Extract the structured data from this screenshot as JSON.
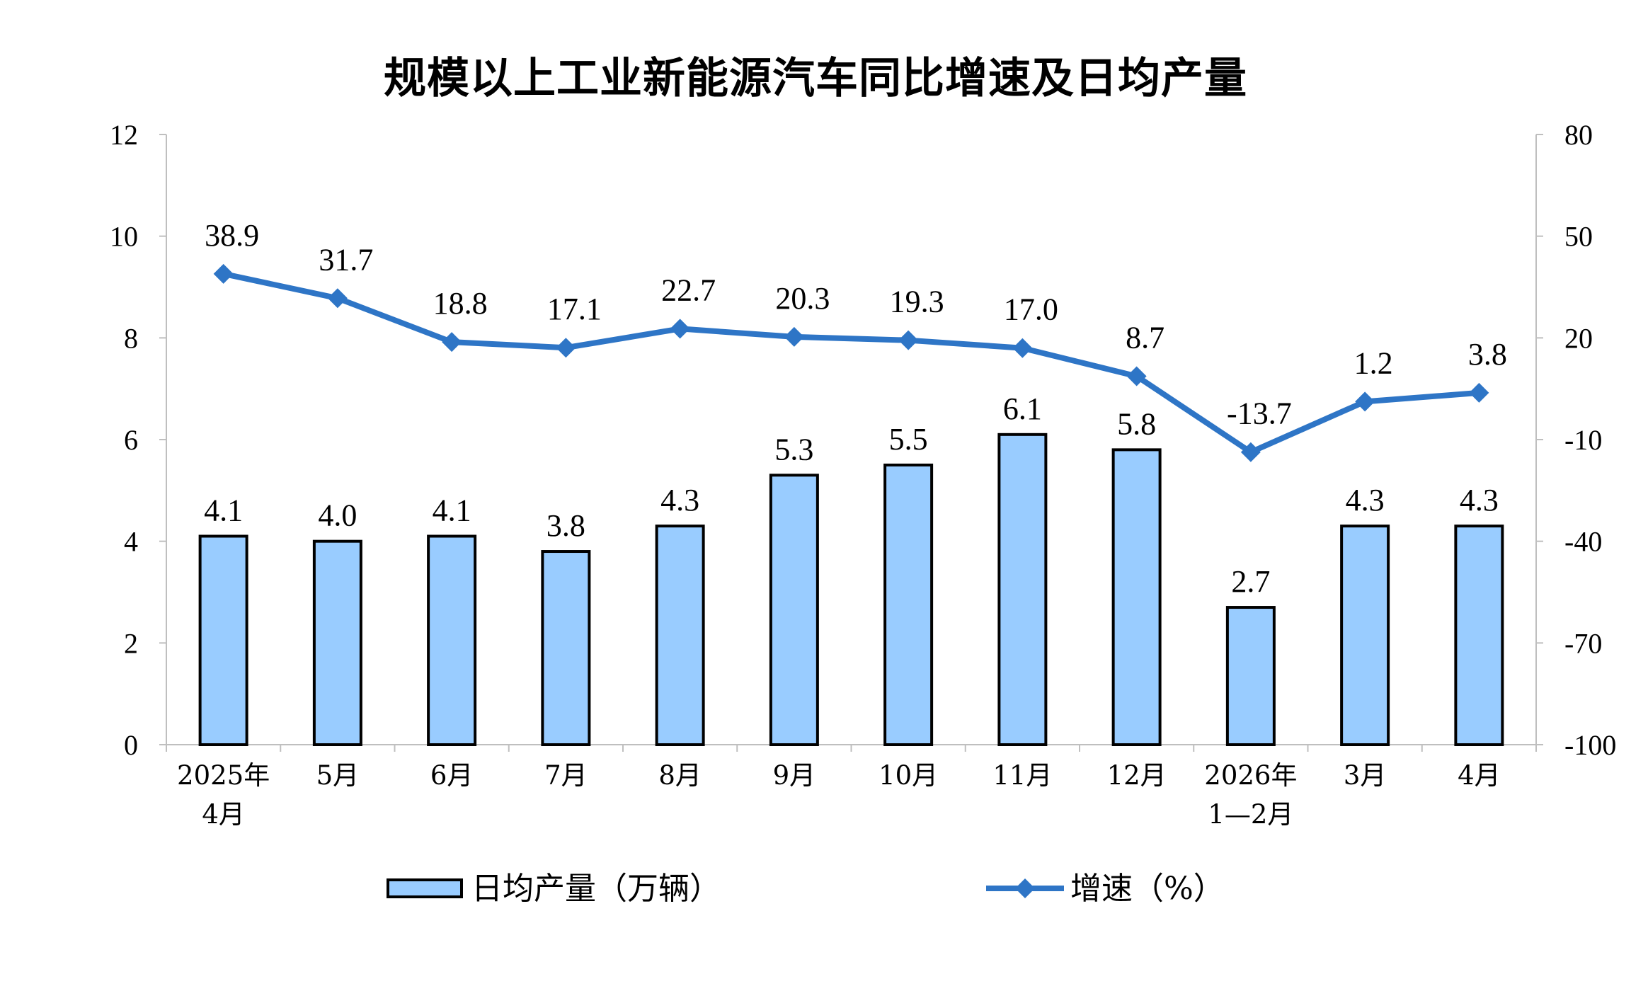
{
  "chart_data": {
    "type": "bar",
    "title": "规模以上工业新能源汽车同比增速及日均产量",
    "categories": [
      [
        "2025年",
        "4月"
      ],
      [
        "5月"
      ],
      [
        "6月"
      ],
      [
        "7月"
      ],
      [
        "8月"
      ],
      [
        "9月"
      ],
      [
        "10月"
      ],
      [
        "11月"
      ],
      [
        "12月"
      ],
      [
        "2026年",
        "1—2月"
      ],
      [
        "3月"
      ],
      [
        "4月"
      ]
    ],
    "series": [
      {
        "name": "日均产量（万辆）",
        "type": "bar",
        "axis": "left",
        "values": [
          4.1,
          4.0,
          4.1,
          3.8,
          4.3,
          5.3,
          5.5,
          6.1,
          5.8,
          2.7,
          4.3,
          4.3
        ],
        "labels": [
          "4.1",
          "4.0",
          "4.1",
          "3.8",
          "4.3",
          "5.3",
          "5.5",
          "6.1",
          "5.8",
          "2.7",
          "4.3",
          "4.3"
        ],
        "color": "#99ccff",
        "edge_color": "#000000"
      },
      {
        "name": "增速（%）",
        "type": "line",
        "axis": "right",
        "marker": "diamond",
        "values": [
          38.9,
          31.7,
          18.8,
          17.1,
          22.7,
          20.3,
          19.3,
          17.0,
          8.7,
          -13.7,
          1.2,
          3.8
        ],
        "labels": [
          "38.9",
          "31.7",
          "18.8",
          "17.1",
          "22.7",
          "20.3",
          "19.3",
          "17.0",
          "8.7",
          "-13.7",
          "1.2",
          "3.8"
        ],
        "color": "#2e75c6"
      }
    ],
    "y_left": {
      "ylim": [
        0,
        12
      ],
      "ticks": [
        0,
        2,
        4,
        6,
        8,
        10,
        12
      ],
      "tick_labels": [
        "0",
        "2",
        "4",
        "6",
        "8",
        "10",
        "12"
      ]
    },
    "y_right": {
      "ylim": [
        -100,
        80
      ],
      "ticks": [
        -100,
        -70,
        -40,
        -10,
        20,
        50,
        80
      ],
      "tick_labels": [
        "-100",
        "-70",
        "-40",
        "-10",
        "20",
        "50",
        "80"
      ]
    },
    "grid": false,
    "legend_position": "bottom"
  }
}
